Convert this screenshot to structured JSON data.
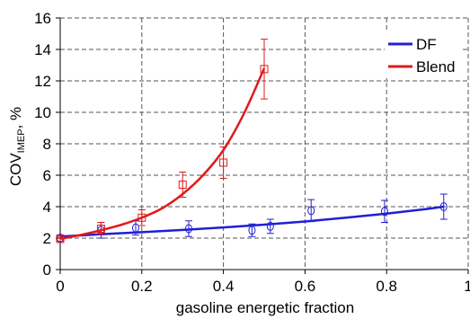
{
  "chart_data": {
    "type": "scatter",
    "xlabel": "gasoline energetic fraction",
    "ylabel": {
      "main": "COV",
      "subscript": "IMEP",
      "suffix": ", %"
    },
    "xlim": [
      0,
      1
    ],
    "ylim": [
      0,
      16
    ],
    "x_ticks": [
      0,
      0.2,
      0.4,
      0.6,
      0.8,
      1
    ],
    "x_tick_labels": [
      "0",
      "0.2",
      "0.4",
      "0.6",
      "0.8",
      "1"
    ],
    "y_ticks": [
      0,
      2,
      4,
      6,
      8,
      10,
      12,
      14,
      16
    ],
    "y_tick_labels": [
      "0",
      "2",
      "4",
      "6",
      "8",
      "10",
      "12",
      "14",
      "16"
    ],
    "grid": "dashed, both axes",
    "legend_position": "top-right",
    "series": [
      {
        "name": "DF",
        "color": "#1f1fd6",
        "marker": "circle",
        "points": [
          {
            "x": 0.0,
            "y": 2.0,
            "err": 0.2
          },
          {
            "x": 0.1,
            "y": 2.5,
            "err": 0.5
          },
          {
            "x": 0.185,
            "y": 2.65,
            "err": 0.45
          },
          {
            "x": 0.315,
            "y": 2.6,
            "err": 0.5
          },
          {
            "x": 0.47,
            "y": 2.5,
            "err": 0.4
          },
          {
            "x": 0.515,
            "y": 2.75,
            "err": 0.45
          },
          {
            "x": 0.615,
            "y": 3.75,
            "err": 0.7
          },
          {
            "x": 0.795,
            "y": 3.7,
            "err": 0.7
          },
          {
            "x": 0.94,
            "y": 4.0,
            "err": 0.8
          }
        ],
        "fit": [
          [
            0.0,
            2.1
          ],
          [
            0.1,
            2.25
          ],
          [
            0.2,
            2.38
          ],
          [
            0.3,
            2.52
          ],
          [
            0.4,
            2.68
          ],
          [
            0.5,
            2.86
          ],
          [
            0.6,
            3.06
          ],
          [
            0.7,
            3.3
          ],
          [
            0.8,
            3.56
          ],
          [
            0.9,
            3.86
          ],
          [
            0.94,
            4.0
          ]
        ]
      },
      {
        "name": "Blend",
        "color": "#e01a1a",
        "marker": "square",
        "points": [
          {
            "x": 0.0,
            "y": 1.95,
            "err": 0.15
          },
          {
            "x": 0.1,
            "y": 2.6,
            "err": 0.4
          },
          {
            "x": 0.2,
            "y": 3.3,
            "err": 0.5
          },
          {
            "x": 0.3,
            "y": 5.4,
            "err": 0.8
          },
          {
            "x": 0.4,
            "y": 6.8,
            "err": 1.0
          },
          {
            "x": 0.5,
            "y": 12.75,
            "err": 1.9
          }
        ],
        "fit": [
          [
            0.0,
            1.95
          ],
          [
            0.05,
            2.2
          ],
          [
            0.1,
            2.5
          ],
          [
            0.15,
            2.85
          ],
          [
            0.2,
            3.3
          ],
          [
            0.25,
            3.9
          ],
          [
            0.3,
            4.8
          ],
          [
            0.35,
            6.0
          ],
          [
            0.4,
            7.6
          ],
          [
            0.45,
            9.9
          ],
          [
            0.5,
            12.8
          ]
        ]
      }
    ]
  }
}
